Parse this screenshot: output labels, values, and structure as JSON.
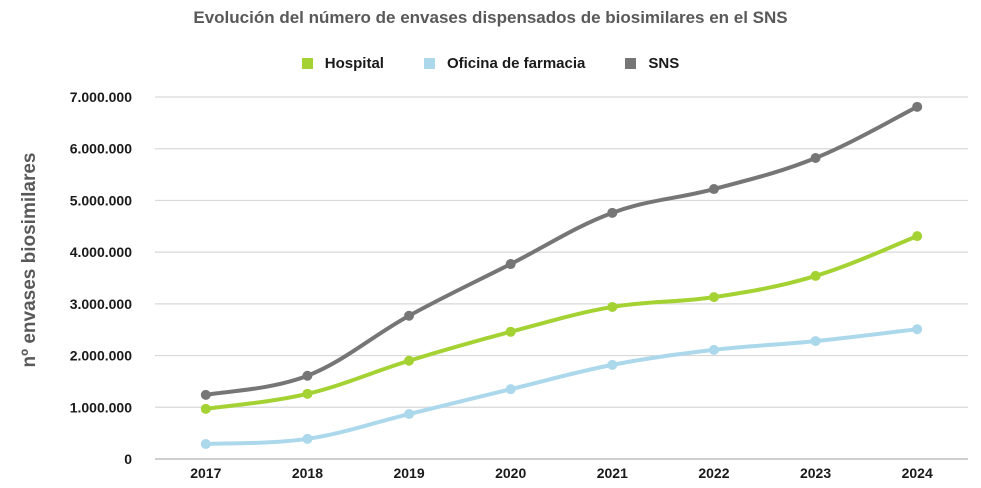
{
  "chart_data": {
    "type": "line",
    "title": "Evolución del número de envases dispensados de biosimilares en el SNS",
    "xlabel": "",
    "ylabel": "nº envases biosimilares",
    "categories": [
      "2017",
      "2018",
      "2019",
      "2020",
      "2021",
      "2022",
      "2023",
      "2024"
    ],
    "ylim": [
      0,
      7000000
    ],
    "yticks": [
      0,
      1000000,
      2000000,
      3000000,
      4000000,
      5000000,
      6000000,
      7000000
    ],
    "ytick_labels": [
      "0",
      "1.000.000",
      "2.000.000",
      "3.000.000",
      "4.000.000",
      "5.000.000",
      "6.000.000",
      "7.000.000"
    ],
    "grid": true,
    "legend_position": "top-center",
    "series": [
      {
        "name": "Hospital",
        "color": "#a4d233",
        "values": [
          970000,
          1260000,
          1900000,
          2460000,
          2940000,
          3130000,
          3540000,
          4310000
        ]
      },
      {
        "name": "Oficina de farmacia",
        "color": "#acd8ec",
        "values": [
          290000,
          390000,
          870000,
          1350000,
          1820000,
          2110000,
          2280000,
          2510000
        ]
      },
      {
        "name": "SNS",
        "color": "#767676",
        "values": [
          1240000,
          1610000,
          2770000,
          3770000,
          4760000,
          5220000,
          5820000,
          6810000
        ]
      }
    ]
  }
}
